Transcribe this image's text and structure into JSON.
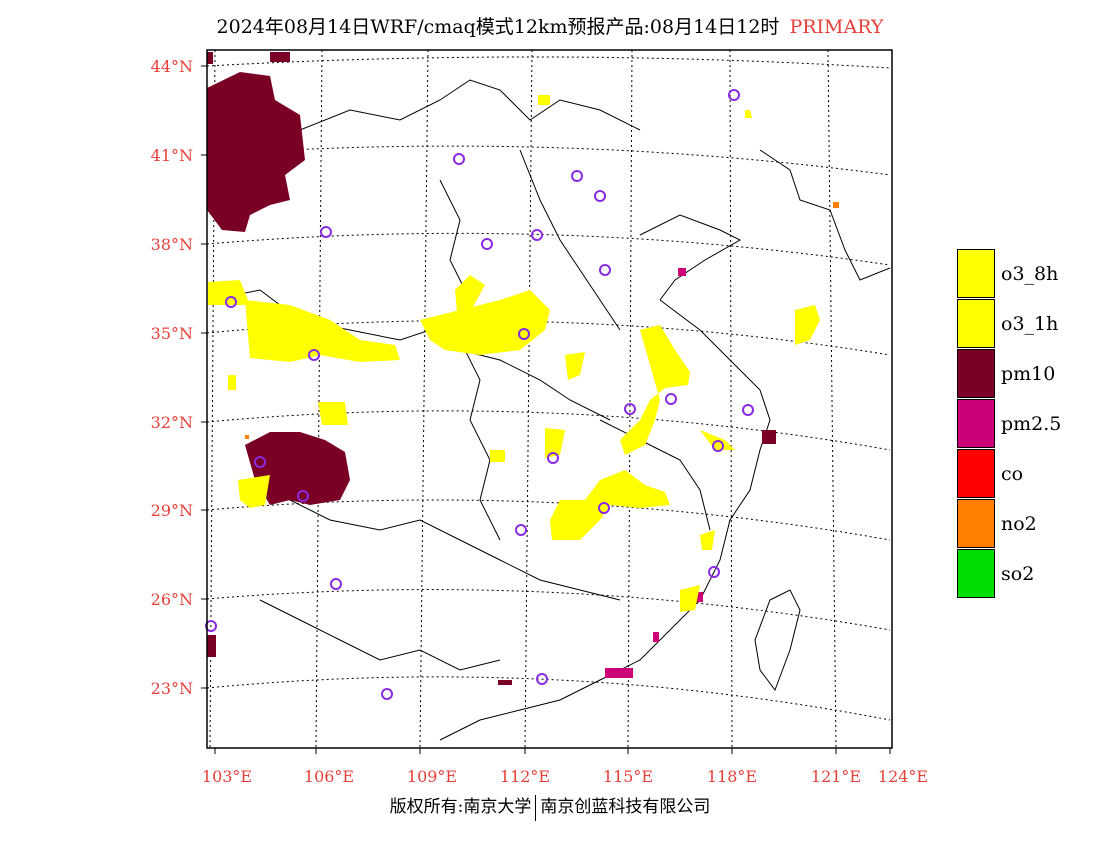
{
  "title": {
    "main": "2024年08月14日WRF/cmaq模式12km预报产品:08月14日12时",
    "tag": "PRIMARY"
  },
  "map": {
    "lat_labels": [
      "44°N",
      "41°N",
      "38°N",
      "35°N",
      "32°N",
      "29°N",
      "26°N",
      "23°N"
    ],
    "lon_labels": [
      "103°E",
      "106°E",
      "109°E",
      "112°E",
      "115°E",
      "118°E",
      "121°E",
      "124°E"
    ],
    "label_color": "#e8403a",
    "station_marker_color": "#8a2be2"
  },
  "legend": {
    "items": [
      {
        "label": "o3_8h",
        "color": "#ffff00"
      },
      {
        "label": "o3_1h",
        "color": "#ffff00"
      },
      {
        "label": "pm10",
        "color": "#7a0026"
      },
      {
        "label": "pm2.5",
        "color": "#cc0077"
      },
      {
        "label": "co",
        "color": "#ff0000"
      },
      {
        "label": "no2",
        "color": "#ff8000"
      },
      {
        "label": "so2",
        "color": "#00dd00"
      }
    ]
  },
  "footer": {
    "left": "版权所有:南京大学",
    "right": "南京创蓝科技有限公司"
  }
}
